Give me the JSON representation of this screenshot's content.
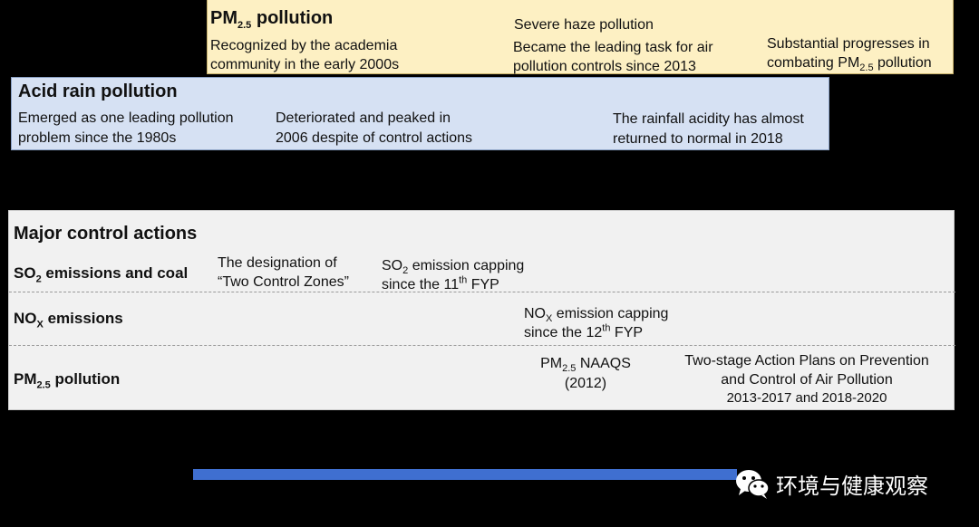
{
  "pm_panel": {
    "title_main": "PM",
    "title_sub": "2.5",
    "title_rest": " pollution",
    "col1_line1": "Recognized by the academia",
    "col1_line2": "community in the early 2000s",
    "col2_line1": "Severe  haze pollution",
    "col2_line2": "Became the leading task for air",
    "col2_line3": "pollution controls since 2013",
    "col3_line1": "Substantial progresses in",
    "col3_line2_a": "combating PM",
    "col3_line2_sub": "2.5",
    "col3_line2_b": " pollution"
  },
  "acid_panel": {
    "title": "Acid rain pollution",
    "col1_line1": "Emerged as one leading pollution",
    "col1_line2": "problem since the 1980s",
    "col2_line1": "Deteriorated and peaked in",
    "col2_line2": "2006 despite of control actions",
    "col3_line1": "The rainfall acidity has almost",
    "col3_line2": "returned to normal in 2018"
  },
  "control_panel": {
    "title": "Major control actions",
    "row1": {
      "label_a": "SO",
      "label_sub": "2",
      "label_b": " emissions and coal",
      "item1_line1": "The designation of",
      "item1_line2": "“Two Control Zones”",
      "item2_line1_a": "SO",
      "item2_line1_sub": "2",
      "item2_line1_b": " emission capping",
      "item2_line2_a": "since the 11",
      "item2_line2_sup": "th",
      "item2_line2_b": " FYP"
    },
    "row2": {
      "label_a": "NO",
      "label_sub": "X",
      "label_b": " emissions",
      "item1_line1_a": "NO",
      "item1_line1_sub": "X",
      "item1_line1_b": " emission capping",
      "item1_line2_a": "since the 12",
      "item1_line2_sup": "th",
      "item1_line2_b": " FYP"
    },
    "row3": {
      "label_a": "PM",
      "label_sub": "2.5",
      "label_b": " pollution",
      "item1_line1_a": "PM",
      "item1_line1_sub": "2.5",
      "item1_line1_b": " NAAQS",
      "item1_line2": "(2012)",
      "item2_line1": "Two-stage Action Plans on Prevention",
      "item2_line2": "and Control of Air Pollution",
      "item2_line3": "2013-2017 and 2018-2020"
    }
  },
  "brand": {
    "icon": "wechat-icon",
    "text": "环境与健康观察"
  },
  "colors": {
    "pm_panel_bg": "#fdf0c3",
    "acid_panel_bg": "#d6e1f3",
    "control_panel_bg": "#f1f1f1",
    "timeline_bar": "#3f6fd0"
  }
}
